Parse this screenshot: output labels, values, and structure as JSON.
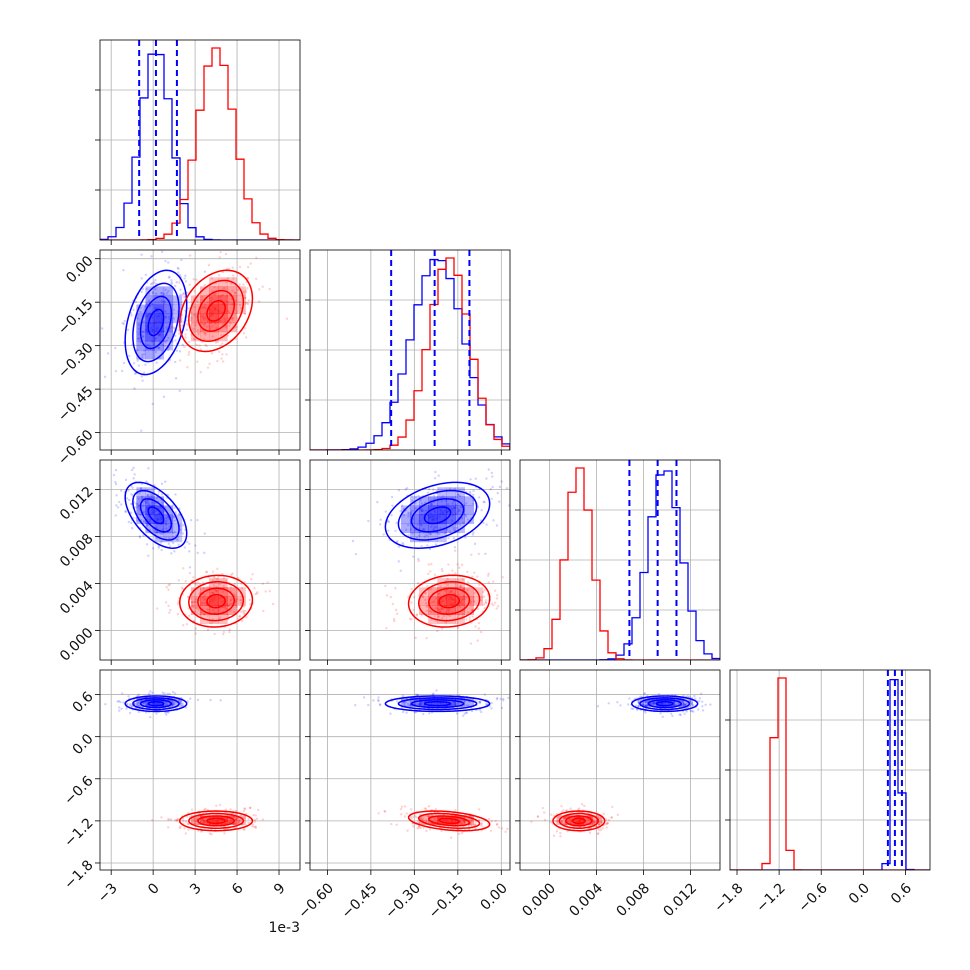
{
  "chart_data": {
    "type": "corner",
    "parameters": [
      {
        "id": "p0",
        "scale_offset_label": "1e-3",
        "lim": [
          -3.8,
          10.5
        ],
        "ticks": [
          -3,
          0,
          3,
          6,
          9
        ],
        "tick_labels": [
          "−3",
          "0",
          "3",
          "6",
          "9"
        ]
      },
      {
        "id": "p1",
        "lim": [
          -0.66,
          0.03
        ],
        "ticks": [
          -0.6,
          -0.45,
          -0.3,
          -0.15,
          0.0
        ],
        "tick_labels": [
          "−0.60",
          "−0.45",
          "−0.30",
          "−0.15",
          "0.00"
        ]
      },
      {
        "id": "p2",
        "lim": [
          -0.0025,
          0.0145
        ],
        "ticks": [
          0.0,
          0.004,
          0.008,
          0.012
        ],
        "tick_labels": [
          "0.000",
          "0.004",
          "0.008",
          "0.012"
        ]
      },
      {
        "id": "p3",
        "lim": [
          -1.9,
          0.95
        ],
        "ticks": [
          -1.8,
          -1.2,
          -0.6,
          0.0,
          0.6
        ],
        "tick_labels": [
          "−1.8",
          "−1.2",
          "−0.6",
          "0.0",
          "0.6"
        ]
      }
    ],
    "series": [
      {
        "color": "#0000ff",
        "means": [
          0.2,
          -0.22,
          0.0098,
          0.47
        ],
        "stds": [
          1.1,
          0.09,
          0.0014,
          0.055
        ],
        "rho": [
          [
            1,
            0.35,
            -0.55,
            0.0
          ],
          [
            0.35,
            1,
            0.35,
            0.0
          ],
          [
            -0.55,
            0.35,
            1,
            0.0
          ],
          [
            0,
            0,
            0,
            1
          ]
        ],
        "quantile_lines": [
          [
            -1.0,
            0.2,
            1.7
          ],
          [
            -0.38,
            -0.23,
            -0.11
          ],
          [
            0.0068,
            0.0092,
            0.0108
          ],
          [
            0.35,
            0.45,
            0.55
          ]
        ]
      },
      {
        "color": "#ff0000",
        "means": [
          4.5,
          -0.18,
          0.0025,
          -1.2
        ],
        "stds": [
          1.3,
          0.07,
          0.0011,
          0.07
        ],
        "rho": [
          [
            1,
            0.3,
            0.05,
            0.0
          ],
          [
            0.3,
            1,
            0.1,
            -0.35
          ],
          [
            0.05,
            0.1,
            1,
            0.0
          ],
          [
            0,
            -0.35,
            0,
            1
          ]
        ]
      }
    ]
  }
}
